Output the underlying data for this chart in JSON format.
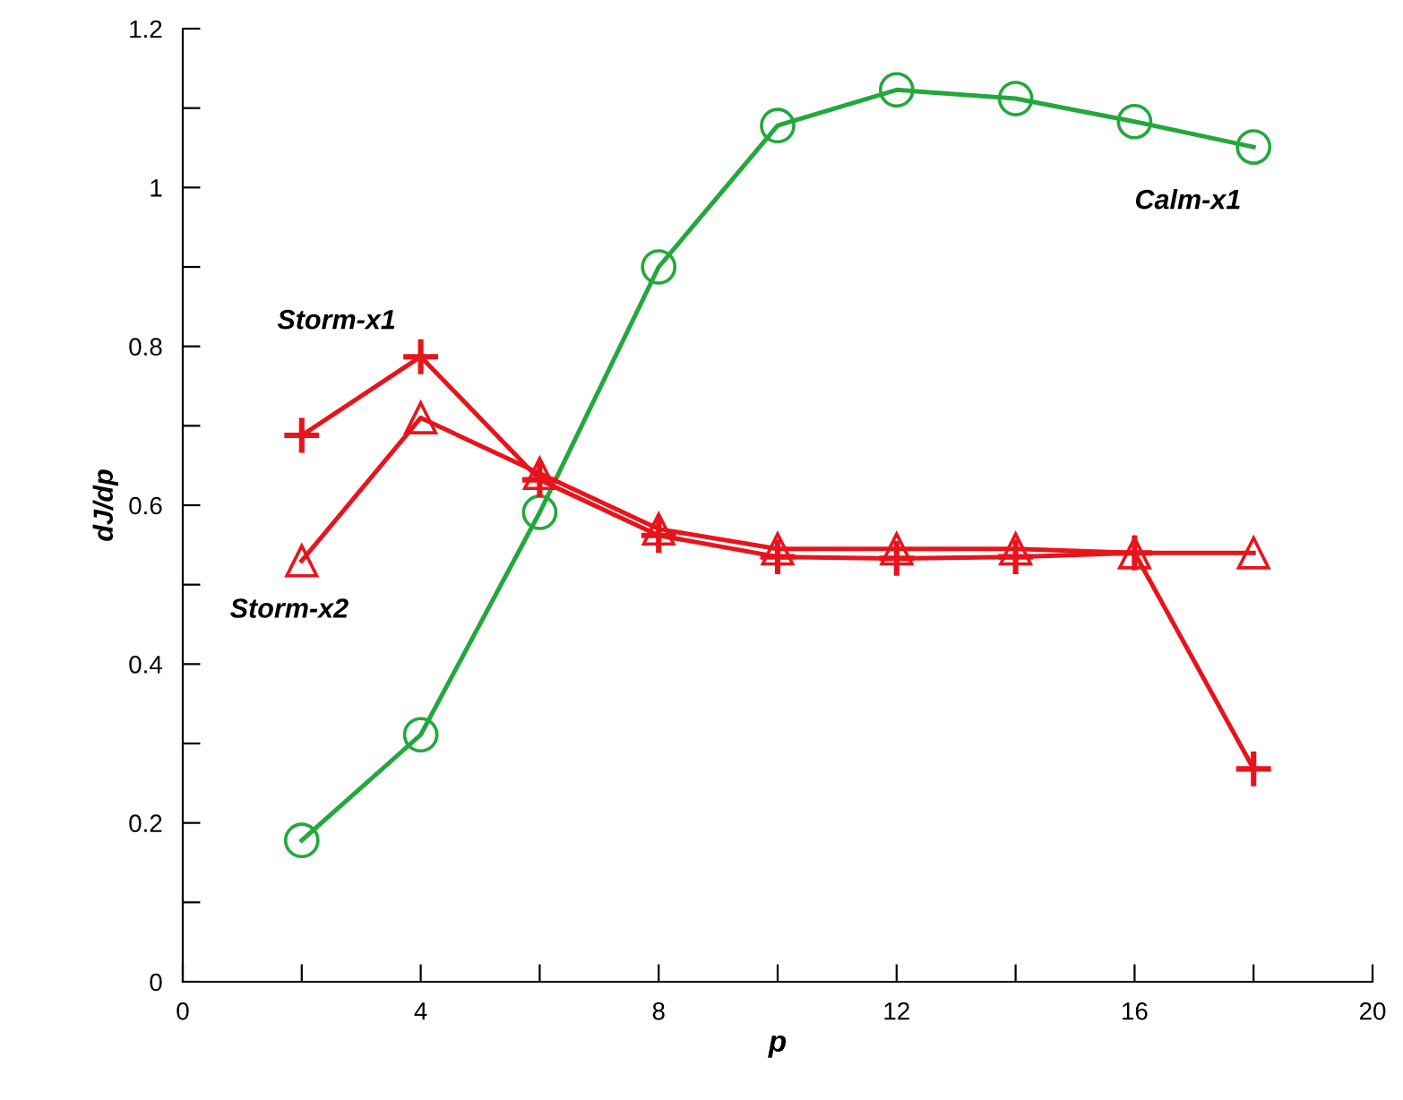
{
  "chart_data": {
    "type": "line",
    "xlabel": "p",
    "ylabel": "dJ/dp",
    "x": [
      2,
      4,
      6,
      8,
      10,
      12,
      14,
      16,
      18
    ],
    "series": [
      {
        "name": "Calm-x1",
        "color": "#22a83c",
        "marker": "circle",
        "values": [
          0.178,
          0.311,
          0.591,
          0.9,
          1.078,
          1.123,
          1.112,
          1.083,
          1.051
        ]
      },
      {
        "name": "Storm-x1",
        "color": "#e8141c",
        "marker": "cross",
        "values": [
          0.688,
          0.787,
          0.632,
          0.562,
          0.535,
          0.533,
          0.535,
          0.54,
          0.268
        ]
      },
      {
        "name": "Storm-x2",
        "color": "#e8141c",
        "marker": "triangle",
        "values": [
          0.53,
          0.71,
          0.64,
          0.57,
          0.545,
          0.545,
          0.545,
          0.54,
          0.54
        ]
      }
    ],
    "xlim": [
      0,
      20
    ],
    "xticks": [
      0,
      {
        "value": 2,
        "label": null
      },
      4,
      {
        "value": 6,
        "label": null
      },
      8,
      {
        "value": 10,
        "label": null
      },
      12,
      {
        "value": 14,
        "label": null
      },
      16,
      {
        "value": 18,
        "label": null
      },
      20
    ],
    "ylim": [
      0,
      1.2
    ],
    "yticks": [
      0,
      {
        "value": 0.1,
        "label": null
      },
      0.2,
      {
        "value": 0.3,
        "label": null
      },
      0.4,
      {
        "value": 0.5,
        "label": null
      },
      0.6,
      {
        "value": 0.7,
        "label": null
      },
      0.8,
      {
        "value": 0.9,
        "label": null
      },
      1,
      {
        "value": 1.1,
        "label": null
      },
      1.2
    ],
    "grid": false,
    "legend": false,
    "line_style": "solid"
  }
}
